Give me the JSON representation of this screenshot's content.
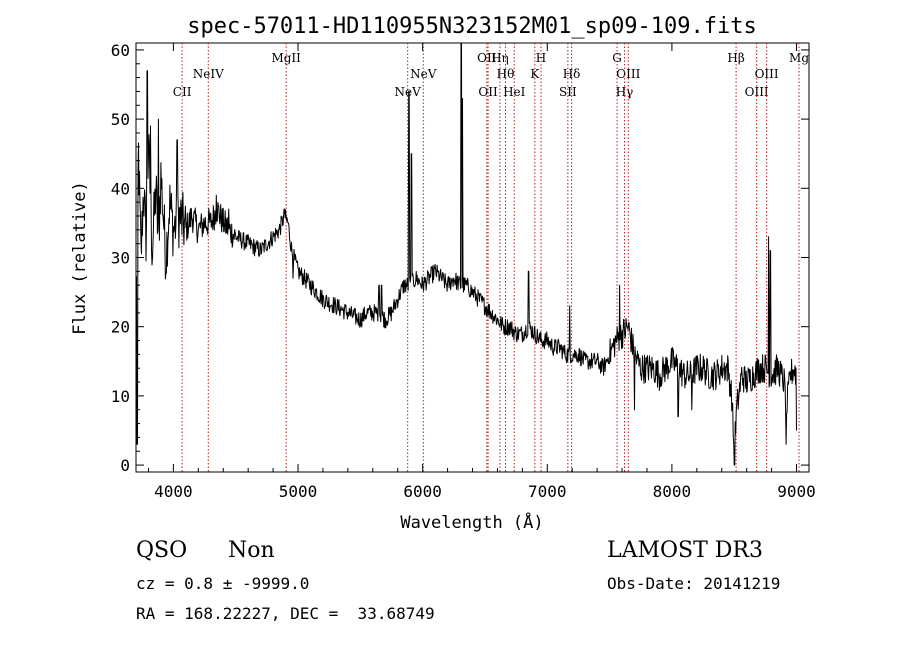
{
  "chart_data": {
    "type": "line",
    "title": "spec-57011-HD110955N323152M01_sp09-109.fits",
    "xlabel": "Wavelength (Å)",
    "ylabel": "Flux (relative)",
    "xlim": [
      3700,
      9100
    ],
    "ylim": [
      -1,
      61
    ],
    "xticks": [
      4000,
      5000,
      6000,
      7000,
      8000,
      9000
    ],
    "yticks": [
      0,
      10,
      20,
      30,
      40,
      50,
      60
    ],
    "line_color": "#000000",
    "marker_color": "#b22222",
    "spectrum_anchors": [
      [
        3700,
        25
      ],
      [
        3720,
        45
      ],
      [
        3740,
        30
      ],
      [
        3760,
        40
      ],
      [
        3780,
        33
      ],
      [
        3800,
        46
      ],
      [
        3830,
        31
      ],
      [
        3860,
        40
      ],
      [
        3880,
        32
      ],
      [
        3900,
        42
      ],
      [
        3940,
        30
      ],
      [
        3970,
        38
      ],
      [
        4000,
        34
      ],
      [
        4050,
        36
      ],
      [
        4100,
        34
      ],
      [
        4150,
        36
      ],
      [
        4200,
        34
      ],
      [
        4250,
        35
      ],
      [
        4300,
        35
      ],
      [
        4350,
        37
      ],
      [
        4400,
        35
      ],
      [
        4500,
        33
      ],
      [
        4600,
        32
      ],
      [
        4700,
        31
      ],
      [
        4800,
        33
      ],
      [
        4850,
        34
      ],
      [
        4890,
        36
      ],
      [
        4920,
        35
      ],
      [
        4950,
        31
      ],
      [
        5000,
        28
      ],
      [
        5100,
        26
      ],
      [
        5200,
        24
      ],
      [
        5300,
        23
      ],
      [
        5400,
        22
      ],
      [
        5500,
        21
      ],
      [
        5550,
        22
      ],
      [
        5600,
        22
      ],
      [
        5650,
        22
      ],
      [
        5700,
        21
      ],
      [
        5750,
        22
      ],
      [
        5800,
        24
      ],
      [
        5850,
        26
      ],
      [
        5900,
        26
      ],
      [
        5950,
        27
      ],
      [
        6000,
        26
      ],
      [
        6050,
        27
      ],
      [
        6100,
        28
      ],
      [
        6150,
        27
      ],
      [
        6200,
        26
      ],
      [
        6250,
        27
      ],
      [
        6300,
        26
      ],
      [
        6350,
        26
      ],
      [
        6400,
        25
      ],
      [
        6450,
        24
      ],
      [
        6500,
        23
      ],
      [
        6550,
        22
      ],
      [
        6600,
        21
      ],
      [
        6650,
        20
      ],
      [
        6700,
        20
      ],
      [
        6750,
        19
      ],
      [
        6800,
        19
      ],
      [
        6850,
        20
      ],
      [
        6900,
        19
      ],
      [
        6950,
        18
      ],
      [
        7000,
        18
      ],
      [
        7050,
        17
      ],
      [
        7100,
        17
      ],
      [
        7150,
        16
      ],
      [
        7200,
        16
      ],
      [
        7250,
        16
      ],
      [
        7300,
        15
      ],
      [
        7350,
        15
      ],
      [
        7400,
        15
      ],
      [
        7450,
        14
      ],
      [
        7500,
        16
      ],
      [
        7550,
        18
      ],
      [
        7600,
        19
      ],
      [
        7650,
        20
      ],
      [
        7700,
        16
      ],
      [
        7750,
        14
      ],
      [
        7800,
        14
      ],
      [
        7850,
        14
      ],
      [
        7900,
        13
      ],
      [
        7950,
        14
      ],
      [
        8000,
        15
      ],
      [
        8050,
        14
      ],
      [
        8100,
        13
      ],
      [
        8150,
        13
      ],
      [
        8200,
        14
      ],
      [
        8250,
        14
      ],
      [
        8300,
        13
      ],
      [
        8350,
        13
      ],
      [
        8400,
        14
      ],
      [
        8450,
        14
      ],
      [
        8480,
        10
      ],
      [
        8500,
        2
      ],
      [
        8520,
        8
      ],
      [
        8560,
        13
      ],
      [
        8600,
        12
      ],
      [
        8650,
        13
      ],
      [
        8700,
        14
      ],
      [
        8750,
        14
      ],
      [
        8800,
        13
      ],
      [
        8850,
        14
      ],
      [
        8900,
        12
      ],
      [
        8920,
        8
      ],
      [
        8950,
        13
      ],
      [
        8980,
        14
      ],
      [
        9000,
        13
      ]
    ],
    "spikes": [
      [
        3790,
        57
      ],
      [
        3815,
        49
      ],
      [
        3880,
        50
      ],
      [
        4030,
        47
      ],
      [
        4345,
        39
      ],
      [
        4445,
        37
      ],
      [
        4890,
        37
      ],
      [
        5650,
        26
      ],
      [
        5670,
        26
      ],
      [
        5890,
        54
      ],
      [
        5910,
        45
      ],
      [
        6310,
        61
      ],
      [
        6320,
        53
      ],
      [
        6850,
        28
      ],
      [
        7180,
        23
      ],
      [
        7580,
        26
      ],
      [
        8790,
        31
      ],
      [
        8775,
        33
      ]
    ],
    "dips": [
      [
        3710,
        3
      ],
      [
        4960,
        27
      ],
      [
        7700,
        8
      ],
      [
        8050,
        7
      ],
      [
        8160,
        8
      ],
      [
        8500,
        0
      ],
      [
        8505,
        0
      ],
      [
        8915,
        3
      ],
      [
        9000,
        5
      ]
    ],
    "lines": [
      {
        "label": "CII",
        "x": 4070,
        "row": 2
      },
      {
        "label": "NeIV",
        "x": 4280,
        "row": 1
      },
      {
        "label": "MgII",
        "x": 4905,
        "row": 0
      },
      {
        "label": "NeV",
        "x": 5880,
        "row": 2
      },
      {
        "label": "NeV",
        "x": 6005,
        "row": 1
      },
      {
        "label": "OII",
        "x": 6515,
        "row": 0
      },
      {
        "label": "OII",
        "x": 6525,
        "row": 2
      },
      {
        "label": "Hη",
        "x": 6620,
        "row": 0
      },
      {
        "label": "Hθ",
        "x": 6665,
        "row": 1
      },
      {
        "label": "HeI",
        "x": 6735,
        "row": 2
      },
      {
        "label": "H",
        "x": 6950,
        "row": 0
      },
      {
        "label": "K",
        "x": 6900,
        "row": 1
      },
      {
        "label": "Hδ",
        "x": 7195,
        "row": 1
      },
      {
        "label": "SII",
        "x": 7165,
        "row": 2
      },
      {
        "label": "G",
        "x": 7560,
        "row": 0
      },
      {
        "label": "OIII",
        "x": 7650,
        "row": 1
      },
      {
        "label": "Hγ",
        "x": 7620,
        "row": 2
      },
      {
        "label": "Hβ",
        "x": 8515,
        "row": 0
      },
      {
        "label": "OIII",
        "x": 8680,
        "row": 2
      },
      {
        "label": "OIII",
        "x": 8760,
        "row": 1
      },
      {
        "label": "Mg",
        "x": 9020,
        "row": 0
      }
    ]
  },
  "info": {
    "classification": "QSO",
    "subclass": "Non",
    "survey": "LAMOST DR3",
    "cz": "cz = 0.8 ± -9999.0",
    "obs_date": "Obs-Date: 20141219",
    "coords": "RA = 168.22227, DEC =  33.68749"
  }
}
